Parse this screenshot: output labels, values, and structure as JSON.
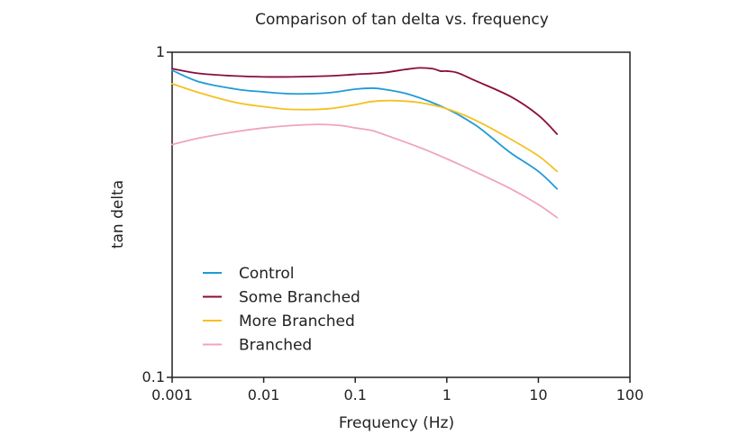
{
  "chart_data": {
    "type": "line",
    "title": "Comparison of tan delta vs. frequency",
    "xlabel": "Frequency (Hz)",
    "ylabel": "tan delta",
    "xscale": "log",
    "yscale": "log",
    "xlim": [
      0.001,
      100
    ],
    "ylim": [
      0.1,
      1
    ],
    "xticks": [
      {
        "value": 0.001,
        "label": "0.001"
      },
      {
        "value": 0.01,
        "label": "0.01"
      },
      {
        "value": 0.1,
        "label": "0.1"
      },
      {
        "value": 1,
        "label": "1"
      },
      {
        "value": 10,
        "label": "10"
      },
      {
        "value": 100,
        "label": "100"
      }
    ],
    "yticks": [
      {
        "value": 0.1,
        "label": "0.1"
      },
      {
        "value": 1,
        "label": "1"
      }
    ],
    "grid": false,
    "legend": "lower-left",
    "series": [
      {
        "name": "Control",
        "color": "#1e9bd7",
        "points": [
          [
            0.001,
            0.88
          ],
          [
            0.002,
            0.81
          ],
          [
            0.005,
            0.77
          ],
          [
            0.01,
            0.755
          ],
          [
            0.02,
            0.745
          ],
          [
            0.05,
            0.75
          ],
          [
            0.1,
            0.77
          ],
          [
            0.15,
            0.775
          ],
          [
            0.2,
            0.77
          ],
          [
            0.4,
            0.74
          ],
          [
            1,
            0.67
          ],
          [
            2,
            0.6
          ],
          [
            3,
            0.55
          ],
          [
            5,
            0.49
          ],
          [
            10,
            0.43
          ],
          [
            16,
            0.38
          ]
        ]
      },
      {
        "name": "Some Branched",
        "color": "#8b0b3e",
        "points": [
          [
            0.001,
            0.89
          ],
          [
            0.002,
            0.86
          ],
          [
            0.005,
            0.845
          ],
          [
            0.01,
            0.84
          ],
          [
            0.02,
            0.84
          ],
          [
            0.05,
            0.845
          ],
          [
            0.1,
            0.855
          ],
          [
            0.2,
            0.865
          ],
          [
            0.35,
            0.885
          ],
          [
            0.5,
            0.895
          ],
          [
            0.7,
            0.89
          ],
          [
            0.85,
            0.875
          ],
          [
            1,
            0.875
          ],
          [
            1.3,
            0.865
          ],
          [
            2,
            0.82
          ],
          [
            5,
            0.73
          ],
          [
            10,
            0.64
          ],
          [
            16,
            0.56
          ]
        ]
      },
      {
        "name": "More Branched",
        "color": "#f5c022",
        "points": [
          [
            0.001,
            0.8
          ],
          [
            0.002,
            0.75
          ],
          [
            0.005,
            0.7
          ],
          [
            0.01,
            0.68
          ],
          [
            0.02,
            0.667
          ],
          [
            0.05,
            0.67
          ],
          [
            0.1,
            0.69
          ],
          [
            0.15,
            0.705
          ],
          [
            0.25,
            0.71
          ],
          [
            0.5,
            0.7
          ],
          [
            1,
            0.67
          ],
          [
            2,
            0.62
          ],
          [
            5,
            0.54
          ],
          [
            10,
            0.48
          ],
          [
            16,
            0.43
          ]
        ]
      },
      {
        "name": "Branched",
        "color": "#f0a3c0",
        "points": [
          [
            0.001,
            0.52
          ],
          [
            0.002,
            0.545
          ],
          [
            0.005,
            0.57
          ],
          [
            0.01,
            0.585
          ],
          [
            0.02,
            0.595
          ],
          [
            0.04,
            0.6
          ],
          [
            0.07,
            0.595
          ],
          [
            0.1,
            0.585
          ],
          [
            0.15,
            0.575
          ],
          [
            0.2,
            0.56
          ],
          [
            0.5,
            0.51
          ],
          [
            1,
            0.47
          ],
          [
            2,
            0.43
          ],
          [
            5,
            0.38
          ],
          [
            10,
            0.34
          ],
          [
            16,
            0.31
          ]
        ]
      }
    ]
  }
}
